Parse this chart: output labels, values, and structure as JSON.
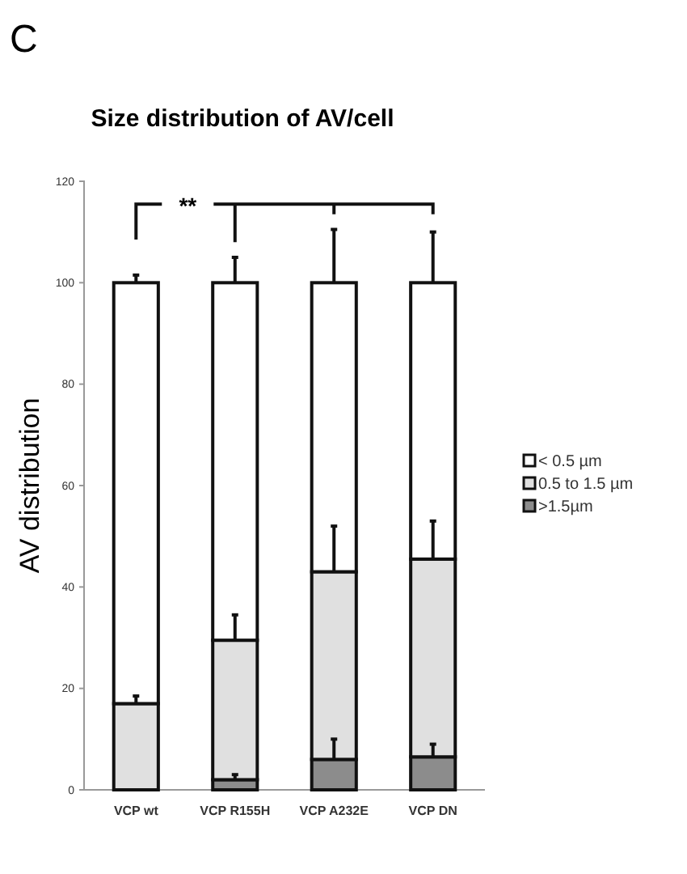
{
  "chart_data": {
    "type": "bar",
    "title": "Size distribution of AV/cell",
    "ylabel": "AV distribution",
    "categories": [
      "VCP wt",
      "VCP R155H",
      "VCP A232E",
      "VCP DN"
    ],
    "stacked": true,
    "series": [
      {
        "name": ">1.5µm",
        "color": "#8c8c8c",
        "values": [
          0,
          2,
          6,
          6.5
        ],
        "errors": [
          null,
          1,
          4,
          2.5
        ]
      },
      {
        "name": "0.5 to 1.5 µm",
        "color": "#e0e0e0",
        "values": [
          17,
          27.5,
          37,
          39
        ],
        "errors": [
          1.5,
          5,
          9,
          7.5
        ]
      },
      {
        "name": "< 0.5 µm",
        "color": "#ffffff",
        "values": [
          83,
          70.5,
          57,
          54.5
        ],
        "errors": [
          1.5,
          5,
          10.5,
          10
        ]
      }
    ],
    "ylim": [
      0,
      120
    ],
    "yticks": [
      0,
      20,
      40,
      60,
      80,
      100,
      120
    ],
    "legend": "right",
    "grid": false,
    "annotations": [
      "C",
      "**"
    ]
  }
}
